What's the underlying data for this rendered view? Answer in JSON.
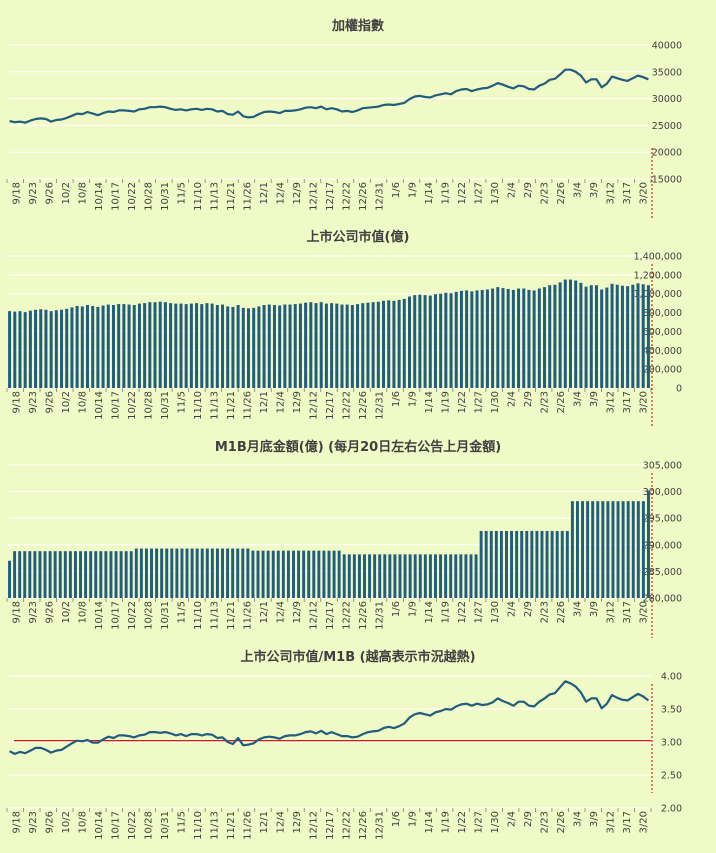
{
  "background": "#F0FAC6",
  "colors": {
    "series": "#215D7F",
    "bar": "#215D7F",
    "grid": "#FFFFFF",
    "reference": "#C00000",
    "text": "#404040"
  },
  "x_tick_labels": [
    "9/18",
    "9/23",
    "9/26",
    "10/2",
    "10/8",
    "10/14",
    "10/17",
    "10/22",
    "10/28",
    "10/31",
    "11/5",
    "11/10",
    "11/13",
    "11/21",
    "11/26",
    "12/1",
    "12/4",
    "12/9",
    "12/12",
    "12/17",
    "12/22",
    "12/26",
    "12/31",
    "1/6",
    "1/9",
    "1/14",
    "1/19",
    "1/22",
    "1/27",
    "1/30",
    "2/4",
    "2/9",
    "2/23",
    "2/26",
    "3/4",
    "3/9",
    "3/12",
    "3/17",
    "3/20"
  ],
  "chart_data": [
    {
      "type": "line",
      "title": "加權指數",
      "ylim": [
        15000,
        40000
      ],
      "yticks": [
        "15000",
        "20000",
        "25000",
        "30000",
        "35000",
        "40000"
      ],
      "categories_ref": "x_tick_labels",
      "values": [
        25800,
        25600,
        25700,
        25500,
        25900,
        26200,
        26300,
        26200,
        25700,
        26000,
        26100,
        26400,
        26800,
        27200,
        27100,
        27500,
        27200,
        26900,
        27300,
        27600,
        27500,
        27800,
        27800,
        27700,
        27600,
        28000,
        28100,
        28400,
        28400,
        28500,
        28400,
        28100,
        27900,
        28000,
        27800,
        28000,
        28100,
        27900,
        28100,
        28000,
        27600,
        27700,
        27100,
        27000,
        27600,
        26700,
        26500,
        26600,
        27100,
        27500,
        27600,
        27500,
        27300,
        27700,
        27700,
        27800,
        28000,
        28300,
        28400,
        28200,
        28500,
        28000,
        28200,
        28000,
        27600,
        27700,
        27500,
        27800,
        28200,
        28300,
        28400,
        28500,
        28800,
        28900,
        28800,
        29000,
        29200,
        29900,
        30400,
        30500,
        30300,
        30200,
        30600,
        30800,
        31000,
        30800,
        31400,
        31700,
        31800,
        31400,
        31700,
        31900,
        32000,
        32400,
        32900,
        32600,
        32200,
        31900,
        32400,
        32300,
        31800,
        31700,
        32400,
        32800,
        33500,
        33700,
        34500,
        35400,
        35400,
        35000,
        34300,
        33000,
        33600,
        33600,
        32100,
        32800,
        34100,
        33800,
        33500,
        33300,
        33800,
        34300,
        34000,
        33600
      ],
      "reference_line": null
    },
    {
      "type": "bar",
      "title": "上市公司市值(億)",
      "ylim": [
        0,
        1400000
      ],
      "yticks": [
        "0",
        "200,000",
        "400,000",
        "600,000",
        "800,000",
        "1,000,000",
        "1,200,000",
        "1,400,000"
      ],
      "categories_ref": "x_tick_labels",
      "values": [
        815000,
        810000,
        815000,
        805000,
        820000,
        830000,
        835000,
        830000,
        815000,
        825000,
        830000,
        840000,
        855000,
        870000,
        865000,
        880000,
        870000,
        860000,
        875000,
        885000,
        880000,
        890000,
        890000,
        885000,
        880000,
        895000,
        900000,
        910000,
        910000,
        915000,
        910000,
        900000,
        895000,
        895000,
        890000,
        895000,
        900000,
        890000,
        900000,
        895000,
        880000,
        885000,
        865000,
        860000,
        880000,
        850000,
        845000,
        850000,
        865000,
        880000,
        885000,
        880000,
        875000,
        885000,
        885000,
        890000,
        895000,
        905000,
        910000,
        900000,
        910000,
        895000,
        900000,
        895000,
        885000,
        885000,
        880000,
        890000,
        900000,
        905000,
        910000,
        915000,
        925000,
        930000,
        925000,
        935000,
        945000,
        970000,
        985000,
        990000,
        985000,
        980000,
        995000,
        1000000,
        1010000,
        1005000,
        1020000,
        1030000,
        1035000,
        1025000,
        1035000,
        1040000,
        1045000,
        1055000,
        1070000,
        1060000,
        1050000,
        1040000,
        1055000,
        1055000,
        1040000,
        1035000,
        1055000,
        1070000,
        1090000,
        1095000,
        1120000,
        1150000,
        1150000,
        1140000,
        1115000,
        1075000,
        1090000,
        1090000,
        1045000,
        1065000,
        1105000,
        1095000,
        1085000,
        1080000,
        1095000,
        1110000,
        1100000,
        1090000
      ]
    },
    {
      "type": "bar",
      "title": "M1B月底金額(億) (每月20日左右公告上月金額)",
      "ylim": [
        280000,
        305000
      ],
      "yticks": [
        "280,000",
        "285,000",
        "290,000",
        "295,000",
        "300,000",
        "305,000"
      ],
      "categories_ref": "x_tick_labels",
      "values": [
        287000,
        288800,
        288800,
        288800,
        288800,
        288800,
        288800,
        288800,
        288800,
        288800,
        288800,
        288800,
        288800,
        288800,
        288800,
        288800,
        288800,
        288800,
        288800,
        288800,
        288800,
        288800,
        288800,
        288800,
        288800,
        289300,
        289300,
        289300,
        289300,
        289300,
        289300,
        289300,
        289300,
        289300,
        289300,
        289300,
        289300,
        289300,
        289300,
        289300,
        289300,
        289300,
        289300,
        289300,
        289300,
        289300,
        289300,
        289300,
        288900,
        288900,
        288900,
        288900,
        288900,
        288900,
        288900,
        288900,
        288900,
        288900,
        288900,
        288900,
        288900,
        288900,
        288900,
        288900,
        288900,
        288900,
        288200,
        288200,
        288200,
        288200,
        288200,
        288200,
        288200,
        288200,
        288200,
        288200,
        288200,
        288200,
        288200,
        288200,
        288200,
        288200,
        288200,
        288200,
        288200,
        288200,
        288200,
        288200,
        288200,
        288200,
        288200,
        288200,
        288200,
        292600,
        292600,
        292600,
        292600,
        292600,
        292600,
        292600,
        292600,
        292600,
        292600,
        292600,
        292600,
        292600,
        292600,
        292600,
        292600,
        292600,
        292600,
        298200,
        298200,
        298200,
        298200,
        298200,
        298200,
        298200,
        298200,
        298200,
        298200,
        298200,
        298200,
        298200,
        298200,
        298200,
        300200
      ]
    },
    {
      "type": "line",
      "title": "上市公司市值/M1B (越高表示市況越熱)",
      "ylim": [
        2.0,
        4.0
      ],
      "yticks": [
        "2.00",
        "2.50",
        "3.00",
        "3.50",
        "4.00"
      ],
      "categories_ref": "x_tick_labels",
      "values": [
        2.86,
        2.82,
        2.85,
        2.83,
        2.87,
        2.91,
        2.91,
        2.88,
        2.84,
        2.87,
        2.88,
        2.93,
        2.98,
        3.02,
        3.01,
        3.03,
        2.99,
        2.99,
        3.04,
        3.08,
        3.06,
        3.1,
        3.1,
        3.09,
        3.07,
        3.1,
        3.11,
        3.15,
        3.15,
        3.14,
        3.15,
        3.13,
        3.1,
        3.12,
        3.09,
        3.12,
        3.12,
        3.1,
        3.12,
        3.11,
        3.06,
        3.07,
        3.0,
        2.97,
        3.06,
        2.95,
        2.96,
        2.98,
        3.04,
        3.07,
        3.08,
        3.07,
        3.05,
        3.09,
        3.1,
        3.1,
        3.12,
        3.15,
        3.16,
        3.13,
        3.17,
        3.12,
        3.15,
        3.12,
        3.09,
        3.09,
        3.07,
        3.08,
        3.12,
        3.15,
        3.16,
        3.17,
        3.21,
        3.23,
        3.21,
        3.24,
        3.28,
        3.37,
        3.42,
        3.44,
        3.42,
        3.4,
        3.45,
        3.47,
        3.5,
        3.49,
        3.54,
        3.57,
        3.58,
        3.55,
        3.58,
        3.56,
        3.57,
        3.6,
        3.66,
        3.62,
        3.59,
        3.55,
        3.61,
        3.61,
        3.55,
        3.54,
        3.61,
        3.66,
        3.72,
        3.74,
        3.83,
        3.92,
        3.89,
        3.84,
        3.75,
        3.61,
        3.66,
        3.66,
        3.51,
        3.58,
        3.71,
        3.67,
        3.64,
        3.63,
        3.68,
        3.73,
        3.69,
        3.63
      ],
      "reference_line": 3.02
    }
  ]
}
